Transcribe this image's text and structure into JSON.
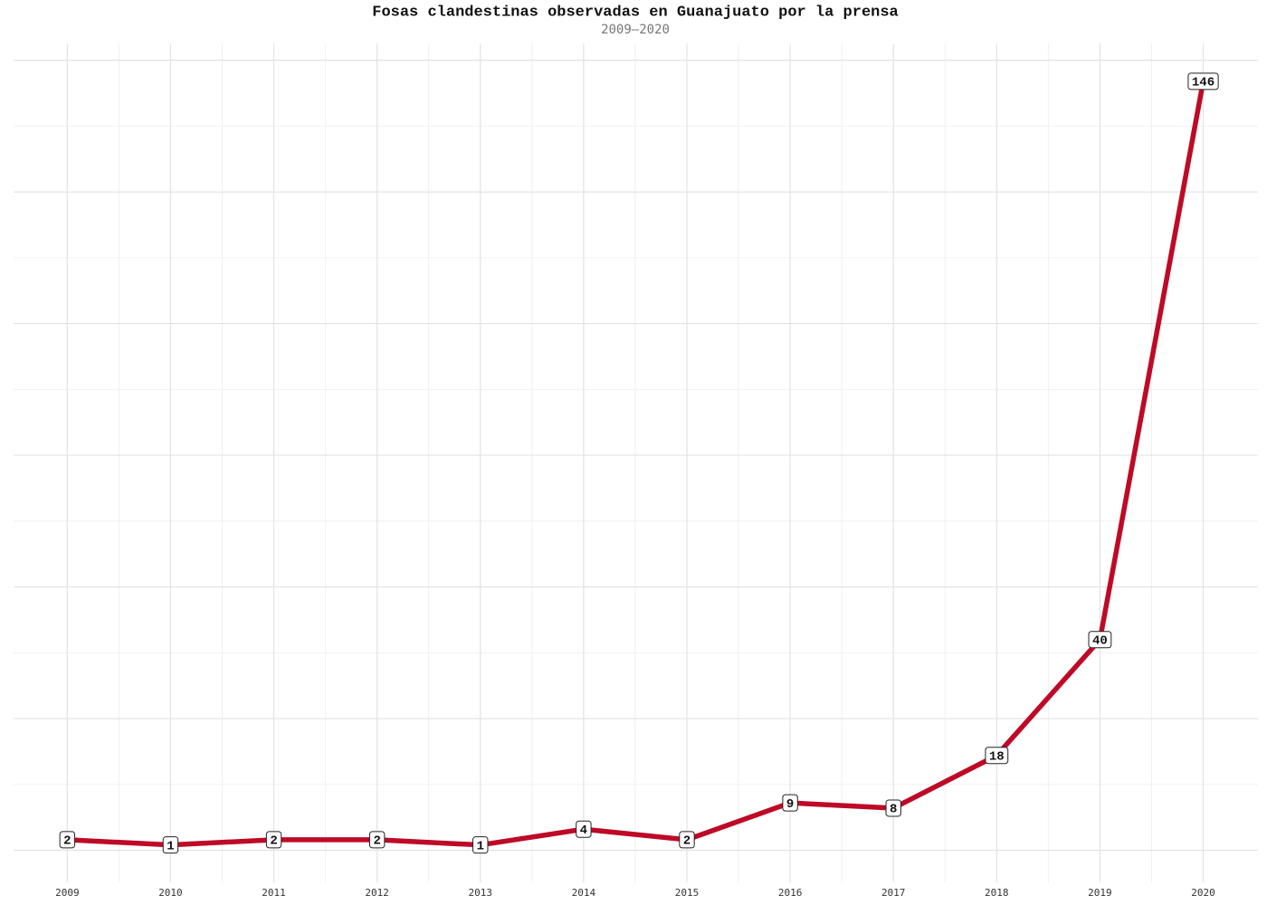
{
  "chart_data": {
    "type": "line",
    "title": "Fosas clandestinas observadas en Guanajuato por la prensa",
    "subtitle": "2009–2020",
    "x": [
      2009,
      2010,
      2011,
      2012,
      2013,
      2014,
      2015,
      2016,
      2017,
      2018,
      2019,
      2020
    ],
    "series": [
      {
        "name": "Fosas",
        "color": "#be0a26",
        "values": [
          2,
          1,
          2,
          2,
          1,
          4,
          2,
          9,
          8,
          18,
          40,
          146
        ]
      }
    ],
    "xlim": [
      2008.48,
      2020.53
    ],
    "xticks": [
      2009,
      2010,
      2011,
      2012,
      2013,
      2014,
      2015,
      2016,
      2017,
      2018,
      2019,
      2020
    ],
    "ylim": [
      -6.1,
      153.2
    ],
    "yticks": [
      0,
      25,
      50,
      75,
      100,
      125,
      150
    ],
    "show_ytick_labels": false,
    "grid": true,
    "data_labels": true
  }
}
